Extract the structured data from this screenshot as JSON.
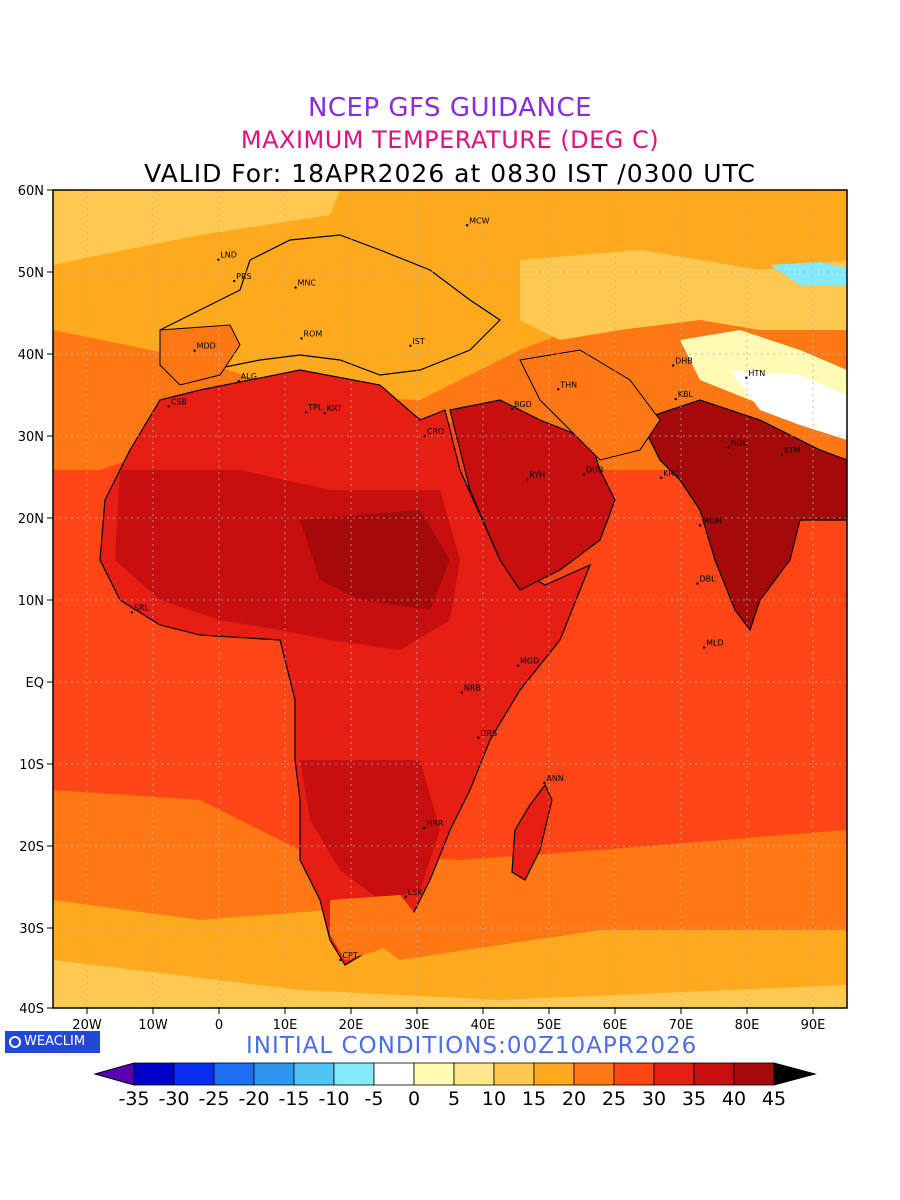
{
  "header": {
    "line1": "NCEP GFS GUIDANCE",
    "line2": "MAXIMUM TEMPERATURE (DEG C)",
    "line3": "VALID For: 18APR2026 at 0830 IST /0300 UTC"
  },
  "footer": {
    "initial_conditions": "INITIAL CONDITIONS:00Z10APR2026",
    "logo_text": "WEACLIM"
  },
  "axes": {
    "lat_labels": [
      "60N",
      "50N",
      "40N",
      "30N",
      "20N",
      "10N",
      "EQ",
      "10S",
      "20S",
      "30S",
      "40S"
    ],
    "lon_labels": [
      "20W",
      "10W",
      "0",
      "10E",
      "20E",
      "30E",
      "40E",
      "50E",
      "60E",
      "70E",
      "80E",
      "90E"
    ]
  },
  "legend": {
    "ticks": [
      "-35",
      "-30",
      "-25",
      "-20",
      "-15",
      "-10",
      "-5",
      "0",
      "5",
      "10",
      "15",
      "20",
      "25",
      "30",
      "35",
      "40",
      "45"
    ],
    "colors": [
      "#5a00b4",
      "#0000c8",
      "#0a2ef0",
      "#1e6ef5",
      "#2e96f0",
      "#50c4f5",
      "#84eafc",
      "#ffffff",
      "#fffab4",
      "#ffe68c",
      "#ffc850",
      "#ffaa1e",
      "#ff7814",
      "#ff4614",
      "#e61e14",
      "#c80f0f",
      "#a50a0a",
      "#5a0000"
    ],
    "low_arrow_color": "#5a00b4",
    "high_arrow_color": "#000000"
  },
  "stations": [
    {
      "code": "MCW",
      "lon": 37.6,
      "lat": 55.7
    },
    {
      "code": "LND",
      "lon": -0.1,
      "lat": 51.5
    },
    {
      "code": "PRS",
      "lon": 2.3,
      "lat": 48.9
    },
    {
      "code": "MNC",
      "lon": 11.6,
      "lat": 48.1
    },
    {
      "code": "MDD",
      "lon": -3.7,
      "lat": 40.4
    },
    {
      "code": "ROM",
      "lon": 12.5,
      "lat": 41.9
    },
    {
      "code": "IST",
      "lon": 29.0,
      "lat": 41.0
    },
    {
      "code": "ALG",
      "lon": 3.0,
      "lat": 36.7
    },
    {
      "code": "CSB",
      "lon": -7.6,
      "lat": 33.6
    },
    {
      "code": "TPL",
      "lon": 13.2,
      "lat": 32.9
    },
    {
      "code": "KRT",
      "lon": 16.0,
      "lat": 32.8
    },
    {
      "code": "CRO",
      "lon": 31.2,
      "lat": 30.0
    },
    {
      "code": "BGD",
      "lon": 44.4,
      "lat": 33.3
    },
    {
      "code": "THN",
      "lon": 51.4,
      "lat": 35.7
    },
    {
      "code": "DHB",
      "lon": 68.8,
      "lat": 38.6
    },
    {
      "code": "KBL",
      "lon": 69.2,
      "lat": 34.5
    },
    {
      "code": "HTN",
      "lon": 79.9,
      "lat": 37.1
    },
    {
      "code": "RYH",
      "lon": 46.7,
      "lat": 24.7
    },
    {
      "code": "DUB",
      "lon": 55.3,
      "lat": 25.3
    },
    {
      "code": "KRC",
      "lon": 67.0,
      "lat": 24.9
    },
    {
      "code": "NDL",
      "lon": 77.2,
      "lat": 28.6
    },
    {
      "code": "KTM",
      "lon": 85.3,
      "lat": 27.7
    },
    {
      "code": "MUM",
      "lon": 72.9,
      "lat": 19.1
    },
    {
      "code": "DBL",
      "lon": 72.5,
      "lat": 12.0
    },
    {
      "code": "MLD",
      "lon": 73.5,
      "lat": 4.2
    },
    {
      "code": "SRL",
      "lon": -13.2,
      "lat": 8.5
    },
    {
      "code": "MGD",
      "lon": 45.3,
      "lat": 2.0
    },
    {
      "code": "NRB",
      "lon": 36.8,
      "lat": -1.3
    },
    {
      "code": "DRS",
      "lon": 39.3,
      "lat": -6.8
    },
    {
      "code": "ANN",
      "lon": 49.3,
      "lat": -12.3
    },
    {
      "code": "HRR",
      "lon": 31.1,
      "lat": -17.8
    },
    {
      "code": "LSK",
      "lon": 28.3,
      "lat": -26.2
    },
    {
      "code": "CPT",
      "lon": 18.4,
      "lat": -33.9
    }
  ]
}
